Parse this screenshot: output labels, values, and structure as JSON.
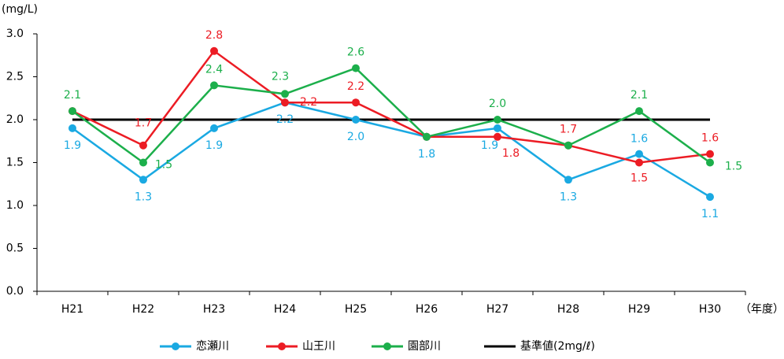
{
  "chart_data": {
    "type": "line",
    "y_axis_label": "(mg/L)",
    "x_axis_label": "（年度）",
    "categories": [
      "H21",
      "H22",
      "H23",
      "H24",
      "H25",
      "H26",
      "H27",
      "H28",
      "H29",
      "H30"
    ],
    "series": [
      {
        "name": "恋瀬川",
        "color": "#1aa9e2",
        "values": [
          1.9,
          1.3,
          1.9,
          2.2,
          2.0,
          1.8,
          1.9,
          1.3,
          1.6,
          1.1
        ],
        "value_labels": [
          "1.9",
          "1.3",
          "1.9",
          "2.2",
          "2.0",
          "1.8",
          "1.9",
          "1.3",
          "1.6",
          "1.1"
        ]
      },
      {
        "name": "山王川",
        "color": "#ec1c24",
        "values": [
          2.1,
          1.7,
          2.8,
          2.2,
          2.2,
          1.8,
          1.8,
          1.7,
          1.5,
          1.6
        ],
        "value_labels": [
          null,
          "1.7",
          "2.8",
          "2.2",
          "2.2",
          null,
          "1.8",
          "1.7",
          "1.5",
          "1.6"
        ]
      },
      {
        "name": "園部川",
        "color": "#1caf4b",
        "values": [
          2.1,
          1.5,
          2.4,
          2.3,
          2.6,
          1.8,
          2.0,
          1.7,
          2.1,
          1.5
        ],
        "value_labels": [
          "2.1",
          "1.5",
          "2.4",
          "2.3",
          "2.6",
          null,
          "2.0",
          null,
          "2.1",
          "1.5"
        ]
      },
      {
        "name": "基準値(2mg/ℓ)",
        "color": "#000000",
        "values": [
          2,
          2,
          2,
          2,
          2,
          2,
          2,
          2,
          2,
          2
        ],
        "markers": false
      }
    ],
    "ylim": [
      0,
      3
    ],
    "yticks": [
      {
        "value": 0,
        "label": "0.0"
      },
      0.5,
      {
        "value": 1,
        "label": "1.0"
      },
      1.5,
      {
        "value": 2,
        "label": "2.0"
      },
      2.5,
      {
        "value": 3,
        "label": "3.0"
      }
    ],
    "grid": false,
    "legend": "bottom"
  }
}
